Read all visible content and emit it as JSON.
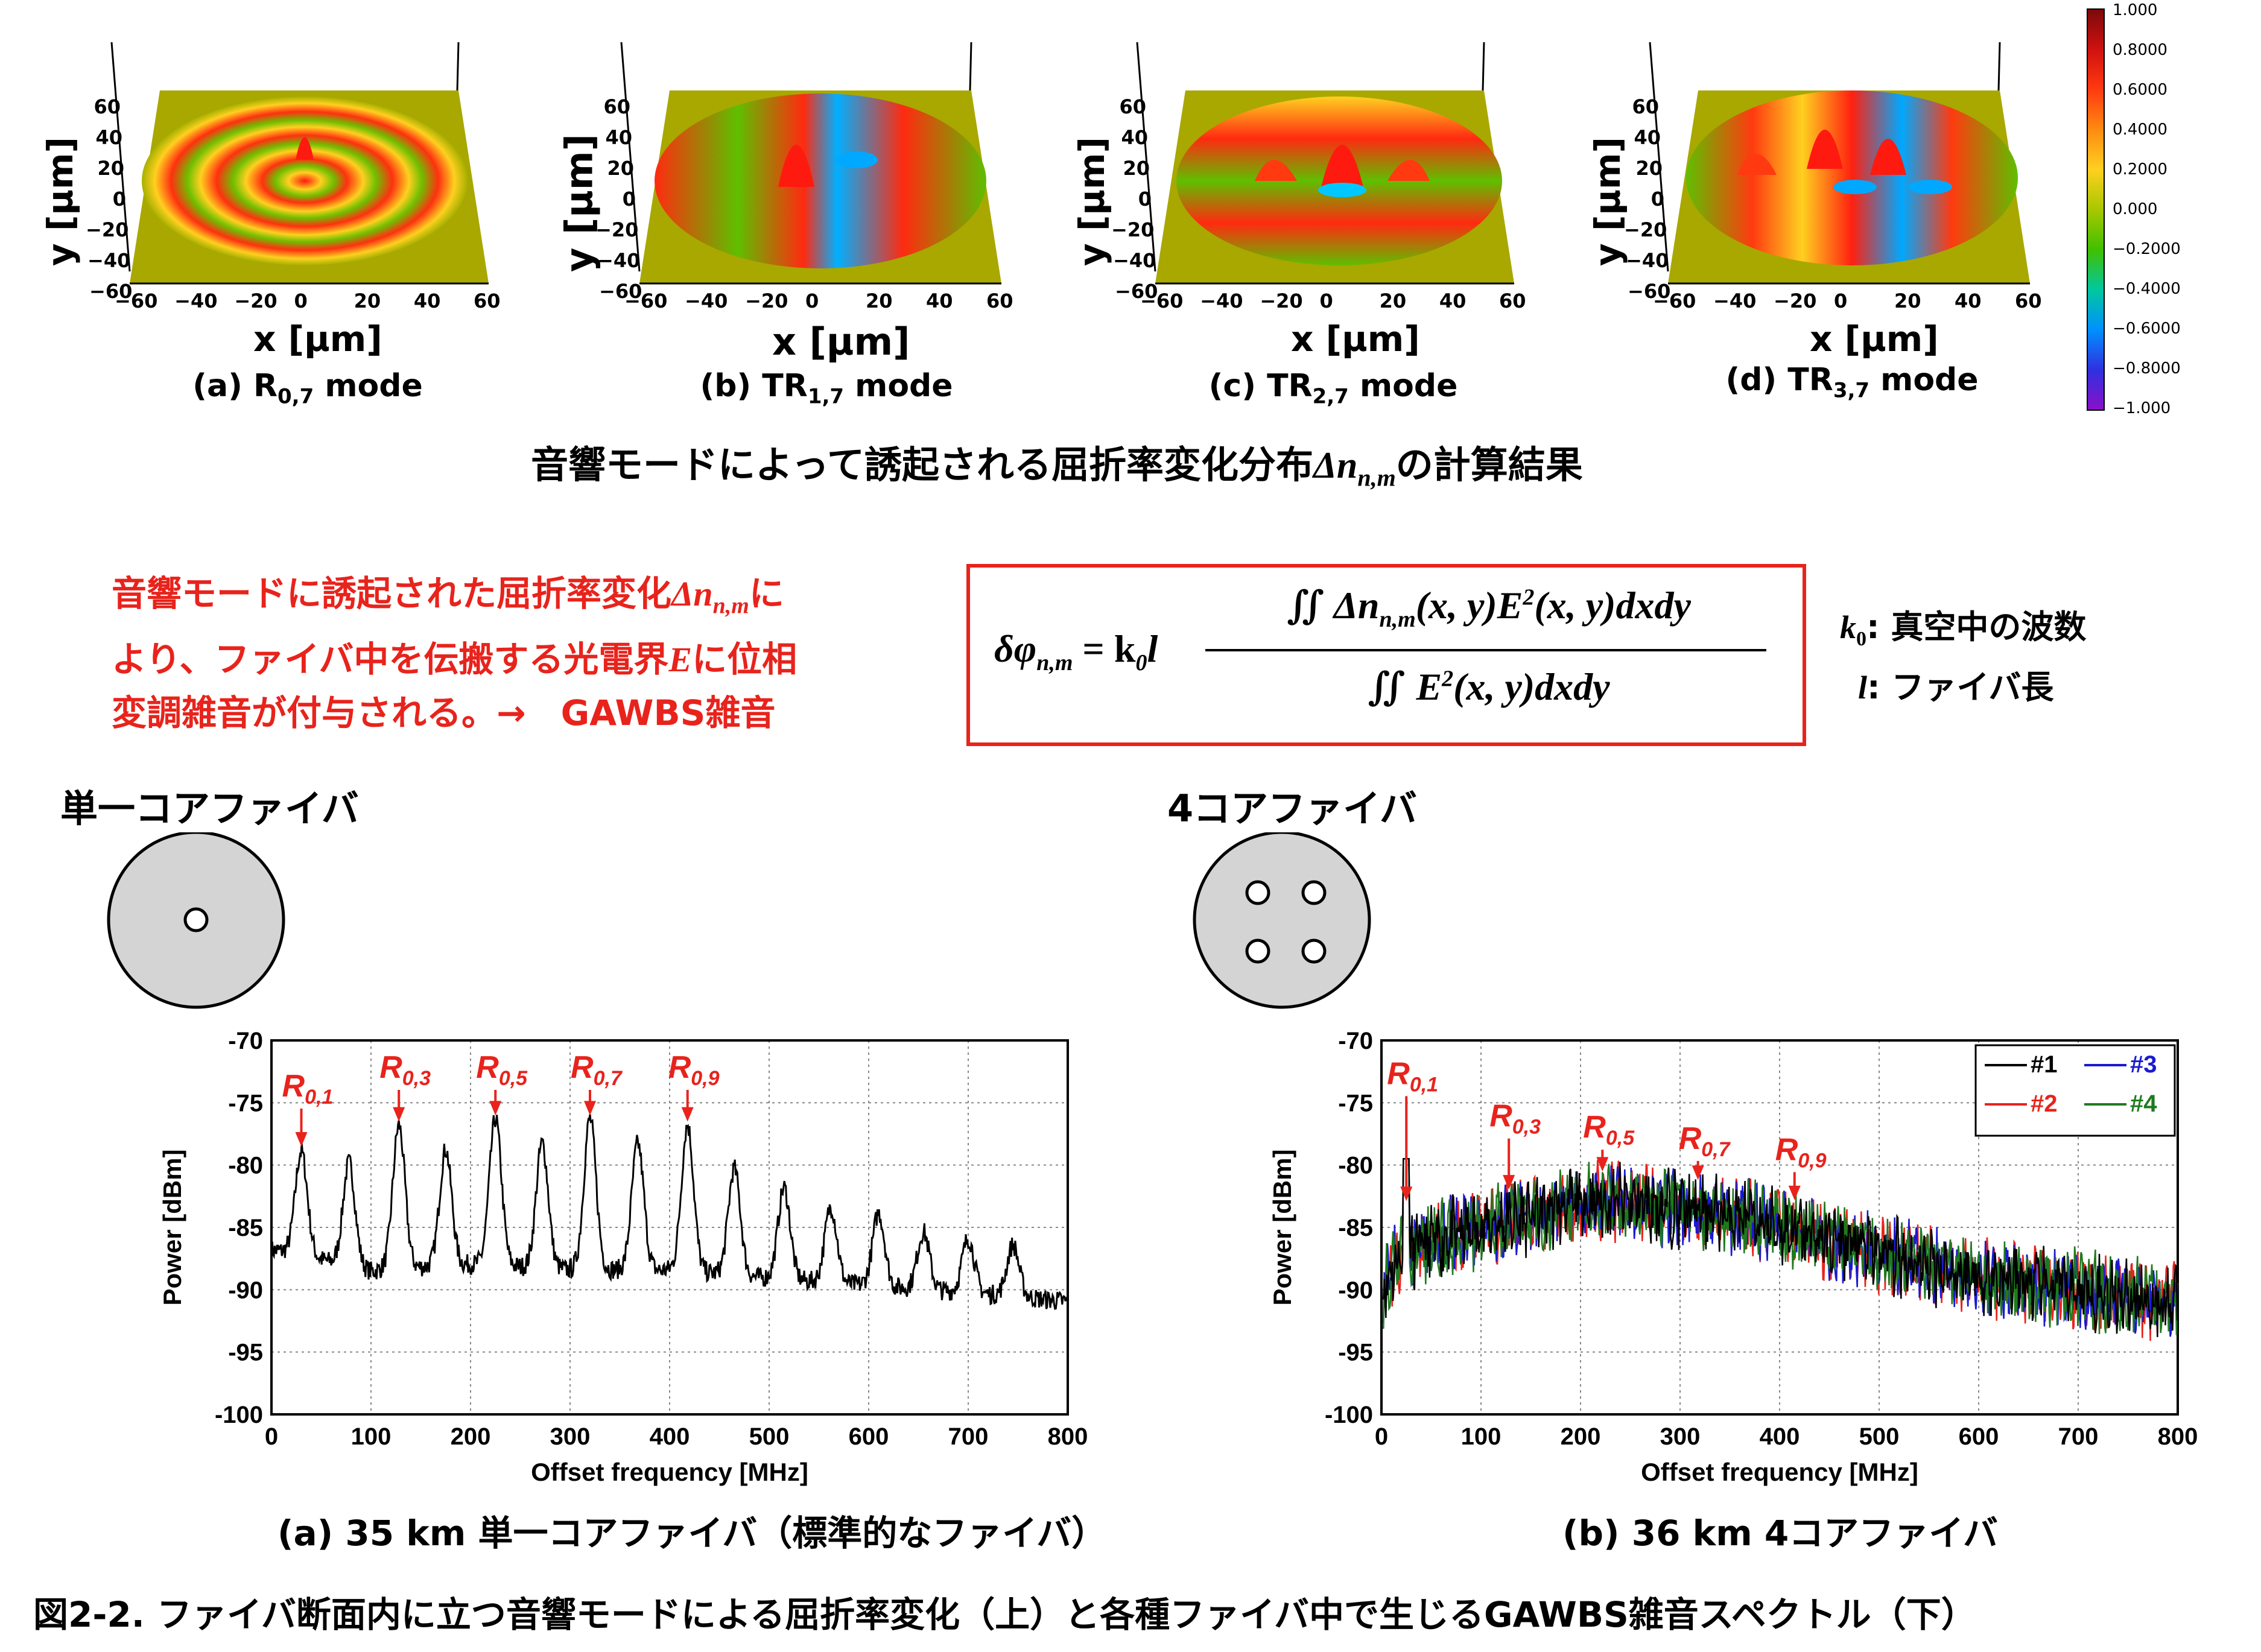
{
  "top_panels": [
    {
      "id": "a",
      "caption_pre": "(a) R",
      "caption_sub": "0,7",
      "caption_post": " mode",
      "xlabel": "x [µm]",
      "ylabel": "y [µm]"
    },
    {
      "id": "b",
      "caption_pre": "(b) TR",
      "caption_sub": "1,7",
      "caption_post": " mode",
      "xlabel": "x [µm]",
      "ylabel": "y [µm]"
    },
    {
      "id": "c",
      "caption_pre": "(c) TR",
      "caption_sub": "2,7",
      "caption_post": " mode",
      "xlabel": "x [µm]",
      "ylabel": "y [µm]"
    },
    {
      "id": "d",
      "caption_pre": "(d) TR",
      "caption_sub": "3,7",
      "caption_post": " mode",
      "xlabel": "x [µm]",
      "ylabel": "y [µm]"
    }
  ],
  "axis_ticks": {
    "x": [
      "−60",
      "−40",
      "−20",
      "0",
      "20",
      "40",
      "60"
    ],
    "y": [
      "60",
      "40",
      "20",
      "0",
      "−20",
      "−40",
      "−60"
    ]
  },
  "colorbar": {
    "ticks": [
      "1.000",
      "0.8000",
      "0.6000",
      "0.4000",
      "0.2000",
      "0.000",
      "−0.2000",
      "−0.4000",
      "−0.6000",
      "−0.8000",
      "−1.000"
    ],
    "colors": [
      "#7a0a0a",
      "#d01010",
      "#ff3a10",
      "#ff8a10",
      "#ffd020",
      "#a8c800",
      "#40c000",
      "#00c8a0",
      "#0090ff",
      "#3030e0",
      "#8a10c8"
    ]
  },
  "top_title": {
    "pre": "音響モードによって誘起される屈折率変化分布",
    "symbol": "Δn",
    "sub": "n,m",
    "post": "の計算結果"
  },
  "explanation": {
    "line1_pre": "音響モードに誘起された屈折率変化",
    "line1_symbol": "Δn",
    "line1_sub": "n,m",
    "line1_post": "に",
    "line2_pre": "より、ファイバ中を伝搬する光電界",
    "line2_symbol": "E",
    "line2_post": "に位相",
    "line3": "変調雑音が付与される。→　GAWBS雑音"
  },
  "formula": {
    "lhs": "δφ",
    "lhs_sub": "n,m",
    "eq": "= k",
    "k_sub": "0",
    "l": "l",
    "numerator": "∬ Δn",
    "num_sub": "n,m",
    "num_rest": "(x, y)E",
    "num_sup": "2",
    "num_tail": "(x, y)dxdy",
    "denominator": "∬ E",
    "den_sup": "2",
    "den_tail": "(x, y)dxdy"
  },
  "legend_defs": {
    "k0_sym": "k",
    "k0_sub": "0",
    "k0_text": ": 真空中の波数",
    "l_sym": "l",
    "l_text": ":  ファイバ長"
  },
  "fiber_single": {
    "label": "単一コアファイバ"
  },
  "fiber_four": {
    "label": "4コアファイバ"
  },
  "chart_data": [
    {
      "type": "line",
      "caption": "(a) 35 km 単一コアファイバ（標準的なファイバ）",
      "xlabel": "Offset frequency [MHz]",
      "ylabel": "Power [dBm]",
      "xlim": [
        0,
        800
      ],
      "ylim": [
        -100,
        -70
      ],
      "x_ticks": [
        "0",
        "100",
        "200",
        "300",
        "400",
        "500",
        "600",
        "700",
        "800"
      ],
      "y_ticks": [
        "-70",
        "-75",
        "-80",
        "-85",
        "-90",
        "-95",
        "-100"
      ],
      "grid": true,
      "baseline_x": [
        0,
        100,
        200,
        300,
        400,
        500,
        600,
        700,
        800
      ],
      "baseline_y": [
        -87,
        -89,
        -88.5,
        -89,
        -89,
        -89.5,
        -90,
        -90.5,
        -91
      ],
      "peaks_x": [
        30,
        78,
        128,
        175,
        225,
        272,
        320,
        368,
        418,
        465,
        515,
        562,
        610,
        655,
        700,
        745
      ],
      "peaks_y": [
        -79,
        -80,
        -77,
        -79,
        -76.5,
        -78.5,
        -76.5,
        -78.5,
        -77,
        -80.5,
        -82,
        -83.5,
        -84,
        -85.5,
        -86,
        -86.5
      ],
      "annotations": [
        {
          "label": "R",
          "sub": "0,1",
          "x": 30
        },
        {
          "label": "R",
          "sub": "0,3",
          "x": 128
        },
        {
          "label": "R",
          "sub": "0,5",
          "x": 225
        },
        {
          "label": "R",
          "sub": "0,7",
          "x": 320
        },
        {
          "label": "R",
          "sub": "0,9",
          "x": 418
        }
      ]
    },
    {
      "type": "line",
      "caption": "(b) 36 km 4コアファイバ",
      "xlabel": "Offset frequency [MHz]",
      "ylabel": "Power [dBm]",
      "xlim": [
        0,
        800
      ],
      "ylim": [
        -100,
        -70
      ],
      "x_ticks": [
        "0",
        "100",
        "200",
        "300",
        "400",
        "500",
        "600",
        "700",
        "800"
      ],
      "y_ticks": [
        "-70",
        "-75",
        "-80",
        "-85",
        "-90",
        "-95",
        "-100"
      ],
      "grid": true,
      "legend_position": "top-right",
      "series": [
        {
          "name": "#1",
          "color": "#000000"
        },
        {
          "name": "#2",
          "color": "#e8231c"
        },
        {
          "name": "#3",
          "color": "#1a1ad0"
        },
        {
          "name": "#4",
          "color": "#1e7a1e"
        }
      ],
      "envelope_x": [
        0,
        20,
        60,
        100,
        150,
        200,
        250,
        300,
        350,
        400,
        450,
        500,
        550,
        600,
        650,
        700,
        750,
        800
      ],
      "envelope_y": [
        -90,
        -87,
        -86,
        -85,
        -84,
        -83,
        -83,
        -83.5,
        -84,
        -85,
        -86,
        -87,
        -88,
        -89,
        -89.5,
        -90,
        -90.5,
        -91
      ],
      "annotations": [
        {
          "label": "R",
          "sub": "0,1",
          "x": 25
        },
        {
          "label": "R",
          "sub": "0,3",
          "x": 128
        },
        {
          "label": "R",
          "sub": "0,5",
          "x": 222
        },
        {
          "label": "R",
          "sub": "0,7",
          "x": 318
        },
        {
          "label": "R",
          "sub": "0,9",
          "x": 415
        }
      ]
    }
  ],
  "figure_caption": "図2-2.  ファイバ断面内に立つ音響モードによる屈折率変化（上）と各種ファイバ中で生じるGAWBS雑音スペクトル（下）"
}
